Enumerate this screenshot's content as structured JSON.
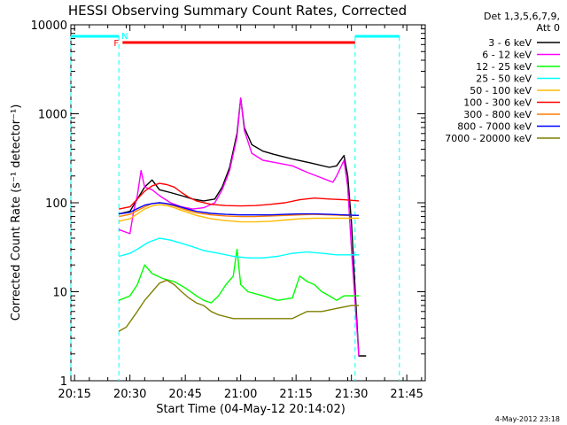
{
  "chart_data": {
    "type": "line",
    "title": "HESSI Observing Summary Count Rates, Corrected",
    "xlabel": "Start Time (04-May-12 20:14:02)",
    "ylabel": "Corrected Count Rate (s⁻¹ detector⁻¹)",
    "y_scale": "log",
    "ylim": [
      1,
      10000
    ],
    "xlim_minutes": [
      0,
      96
    ],
    "x_ticks": [
      {
        "label": "20:15",
        "minute": 1
      },
      {
        "label": "20:30",
        "minute": 16
      },
      {
        "label": "20:45",
        "minute": 31
      },
      {
        "label": "21:00",
        "minute": 46
      },
      {
        "label": "21:15",
        "minute": 61
      },
      {
        "label": "21:30",
        "minute": 76
      },
      {
        "label": "21:45",
        "minute": 91
      }
    ],
    "y_ticks": [
      {
        "label": "1",
        "value": 1
      },
      {
        "label": "10",
        "value": 10
      },
      {
        "label": "100",
        "value": 100
      },
      {
        "label": "1000",
        "value": 1000
      },
      {
        "label": "10000",
        "value": 10000
      }
    ],
    "legend_header": [
      "Det 1,3,5,6,7,9,",
      "Att 0"
    ],
    "legend_position": "right",
    "series": [
      {
        "name": "3 - 6 keV",
        "color": "#000000",
        "points": [
          [
            13,
            75
          ],
          [
            16,
            80
          ],
          [
            18,
            110
          ],
          [
            20,
            150
          ],
          [
            22,
            180
          ],
          [
            24,
            140
          ],
          [
            27,
            130
          ],
          [
            30,
            120
          ],
          [
            33,
            110
          ],
          [
            36,
            105
          ],
          [
            39,
            110
          ],
          [
            41,
            150
          ],
          [
            43,
            250
          ],
          [
            45,
            600
          ],
          [
            46,
            1500
          ],
          [
            47,
            700
          ],
          [
            49,
            450
          ],
          [
            52,
            380
          ],
          [
            55,
            350
          ],
          [
            60,
            310
          ],
          [
            65,
            280
          ],
          [
            70,
            250
          ],
          [
            72,
            260
          ],
          [
            74,
            340
          ],
          [
            75,
            200
          ],
          [
            76,
            60
          ],
          [
            78,
            1.9
          ],
          [
            80,
            1.9
          ]
        ]
      },
      {
        "name": "6 - 12 keV",
        "color": "#ff00ff",
        "points": [
          [
            13,
            50
          ],
          [
            16,
            45
          ],
          [
            17,
            80
          ],
          [
            18,
            120
          ],
          [
            19,
            230
          ],
          [
            20,
            150
          ],
          [
            22,
            140
          ],
          [
            24,
            120
          ],
          [
            27,
            100
          ],
          [
            30,
            90
          ],
          [
            33,
            85
          ],
          [
            36,
            88
          ],
          [
            39,
            100
          ],
          [
            41,
            140
          ],
          [
            43,
            230
          ],
          [
            45,
            550
          ],
          [
            46,
            1500
          ],
          [
            47,
            650
          ],
          [
            49,
            360
          ],
          [
            52,
            300
          ],
          [
            56,
            280
          ],
          [
            60,
            260
          ],
          [
            64,
            220
          ],
          [
            68,
            190
          ],
          [
            71,
            170
          ],
          [
            72,
            200
          ],
          [
            74,
            300
          ],
          [
            75,
            150
          ],
          [
            76,
            30
          ],
          [
            78,
            1.9
          ]
        ]
      },
      {
        "name": "12 - 25 keV",
        "color": "#00ff00",
        "points": [
          [
            13,
            8
          ],
          [
            16,
            9
          ],
          [
            18,
            12
          ],
          [
            20,
            20
          ],
          [
            22,
            16
          ],
          [
            25,
            14
          ],
          [
            28,
            13
          ],
          [
            31,
            11
          ],
          [
            34,
            9
          ],
          [
            36,
            8
          ],
          [
            38,
            7.5
          ],
          [
            40,
            9
          ],
          [
            42,
            12
          ],
          [
            44,
            15
          ],
          [
            45,
            30
          ],
          [
            46,
            12
          ],
          [
            48,
            10
          ],
          [
            52,
            9
          ],
          [
            56,
            8
          ],
          [
            60,
            8.5
          ],
          [
            62,
            15
          ],
          [
            64,
            13
          ],
          [
            66,
            12
          ],
          [
            68,
            10
          ],
          [
            70,
            9
          ],
          [
            72,
            8
          ],
          [
            74,
            9
          ],
          [
            76,
            9
          ],
          [
            78,
            9
          ]
        ]
      },
      {
        "name": "25 - 50 keV",
        "color": "#00ffff",
        "points": [
          [
            13,
            25
          ],
          [
            16,
            27
          ],
          [
            18,
            30
          ],
          [
            21,
            36
          ],
          [
            24,
            40
          ],
          [
            27,
            38
          ],
          [
            30,
            35
          ],
          [
            33,
            32
          ],
          [
            36,
            29
          ],
          [
            40,
            27
          ],
          [
            44,
            25
          ],
          [
            48,
            24
          ],
          [
            52,
            24
          ],
          [
            56,
            25
          ],
          [
            60,
            27
          ],
          [
            64,
            28
          ],
          [
            68,
            27
          ],
          [
            72,
            26
          ],
          [
            76,
            26
          ],
          [
            78,
            26
          ]
        ]
      },
      {
        "name": "50 - 100 keV",
        "color": "#ffbb00",
        "points": [
          [
            13,
            62
          ],
          [
            16,
            66
          ],
          [
            18,
            75
          ],
          [
            20,
            85
          ],
          [
            22,
            92
          ],
          [
            24,
            95
          ],
          [
            26,
            93
          ],
          [
            28,
            88
          ],
          [
            30,
            82
          ],
          [
            32,
            77
          ],
          [
            34,
            72
          ],
          [
            38,
            66
          ],
          [
            42,
            63
          ],
          [
            46,
            61
          ],
          [
            50,
            61
          ],
          [
            54,
            62
          ],
          [
            58,
            64
          ],
          [
            62,
            66
          ],
          [
            66,
            67
          ],
          [
            70,
            67
          ],
          [
            74,
            67
          ],
          [
            78,
            67
          ]
        ]
      },
      {
        "name": "100 - 300 keV",
        "color": "#ff0000",
        "points": [
          [
            13,
            85
          ],
          [
            16,
            90
          ],
          [
            18,
            110
          ],
          [
            20,
            135
          ],
          [
            22,
            155
          ],
          [
            24,
            165
          ],
          [
            26,
            160
          ],
          [
            28,
            150
          ],
          [
            30,
            130
          ],
          [
            32,
            115
          ],
          [
            34,
            105
          ],
          [
            38,
            96
          ],
          [
            42,
            93
          ],
          [
            46,
            92
          ],
          [
            50,
            93
          ],
          [
            54,
            96
          ],
          [
            58,
            100
          ],
          [
            62,
            108
          ],
          [
            66,
            113
          ],
          [
            70,
            110
          ],
          [
            74,
            108
          ],
          [
            78,
            105
          ]
        ]
      },
      {
        "name": "300 - 800 keV",
        "color": "#ff7f00",
        "points": [
          [
            13,
            70
          ],
          [
            16,
            74
          ],
          [
            18,
            82
          ],
          [
            20,
            90
          ],
          [
            22,
            98
          ],
          [
            24,
            100
          ],
          [
            26,
            97
          ],
          [
            28,
            92
          ],
          [
            30,
            86
          ],
          [
            32,
            81
          ],
          [
            34,
            77
          ],
          [
            38,
            73
          ],
          [
            42,
            71
          ],
          [
            46,
            70
          ],
          [
            50,
            70
          ],
          [
            54,
            71
          ],
          [
            58,
            72
          ],
          [
            62,
            73
          ],
          [
            66,
            74
          ],
          [
            70,
            73
          ],
          [
            74,
            72
          ],
          [
            78,
            72
          ]
        ]
      },
      {
        "name": "800 - 7000 keV",
        "color": "#0000ff",
        "points": [
          [
            13,
            75
          ],
          [
            16,
            78
          ],
          [
            18,
            86
          ],
          [
            20,
            94
          ],
          [
            22,
            98
          ],
          [
            24,
            100
          ],
          [
            26,
            98
          ],
          [
            28,
            94
          ],
          [
            30,
            89
          ],
          [
            32,
            84
          ],
          [
            34,
            80
          ],
          [
            38,
            76
          ],
          [
            42,
            74
          ],
          [
            46,
            73
          ],
          [
            50,
            73
          ],
          [
            54,
            73
          ],
          [
            58,
            74
          ],
          [
            62,
            75
          ],
          [
            66,
            75
          ],
          [
            70,
            74
          ],
          [
            74,
            73
          ],
          [
            78,
            72
          ]
        ]
      },
      {
        "name": "7000 - 20000 keV",
        "color": "#7f7f00",
        "points": [
          [
            13,
            3.6
          ],
          [
            15,
            4
          ],
          [
            18,
            6
          ],
          [
            20,
            8
          ],
          [
            22,
            10
          ],
          [
            24,
            12.5
          ],
          [
            26,
            13.5
          ],
          [
            28,
            12
          ],
          [
            30,
            10
          ],
          [
            32,
            8.5
          ],
          [
            34,
            7.5
          ],
          [
            36,
            7
          ],
          [
            38,
            6
          ],
          [
            40,
            5.5
          ],
          [
            44,
            5
          ],
          [
            48,
            5
          ],
          [
            52,
            5
          ],
          [
            56,
            5
          ],
          [
            60,
            5
          ],
          [
            64,
            6
          ],
          [
            68,
            6
          ],
          [
            72,
            6.5
          ],
          [
            76,
            7
          ],
          [
            78,
            7
          ]
        ]
      }
    ],
    "flags": {
      "night_label": "N",
      "night_color": "#00ffff",
      "night_top_segments_minutes": [
        [
          0,
          13
        ],
        [
          77,
          89
        ]
      ],
      "night_boundaries_minutes": [
        [
          0,
          13
        ],
        [
          77,
          89
        ]
      ],
      "flare_label": "F",
      "flare_color": "#ff0000",
      "flare_segment_minutes": [
        14,
        77
      ]
    }
  },
  "timestamp": "4-May-2012 23:18"
}
